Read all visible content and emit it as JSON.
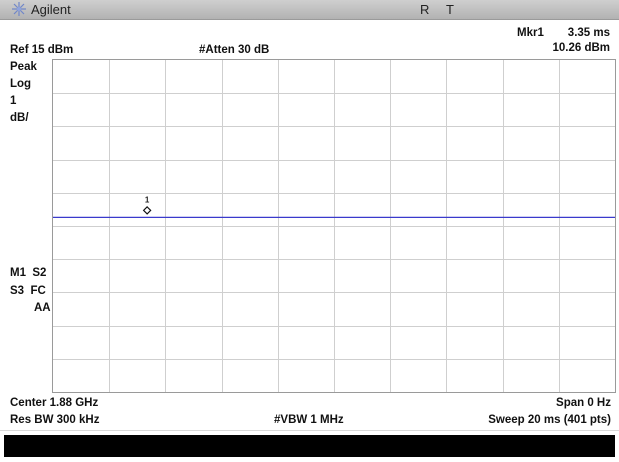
{
  "header": {
    "brand": "Agilent",
    "brand_icon": "spark-logo-icon",
    "status_r": "R",
    "status_t": "T",
    "brand_color": "#3a63b8"
  },
  "marker_readout": {
    "name": "Mkr1",
    "time": "3.35 ms",
    "level": "10.26 dBm"
  },
  "settings": {
    "ref_level": "Ref 15 dBm",
    "attenuation": "#Atten 30 dB",
    "detector": "Peak",
    "scale_type": "Log",
    "scale_value": "1",
    "scale_unit": "dB/",
    "m1_s2": "M1  S2",
    "s3_fc": "S3  FC",
    "aa": "AA",
    "center": "Center 1.88 GHz",
    "span": "Span 0 Hz",
    "res_bw": "Res BW 300 kHz",
    "vbw": "#VBW 1 MHz",
    "sweep": "Sweep 20 ms (401 pts)"
  },
  "chart_data": {
    "type": "line",
    "x_unit": "ms",
    "y_unit": "dBm",
    "xlim": [
      0,
      20
    ],
    "ylim": [
      5,
      15
    ],
    "x_divisions": 10,
    "y_divisions": 10,
    "grid": true,
    "trace_color": "#3a3acc",
    "series": [
      {
        "x": [
          0,
          20
        ],
        "values": [
          10.26,
          10.26
        ]
      }
    ],
    "marker": {
      "label": "1",
      "x": 3.35,
      "y": 10.26
    }
  }
}
